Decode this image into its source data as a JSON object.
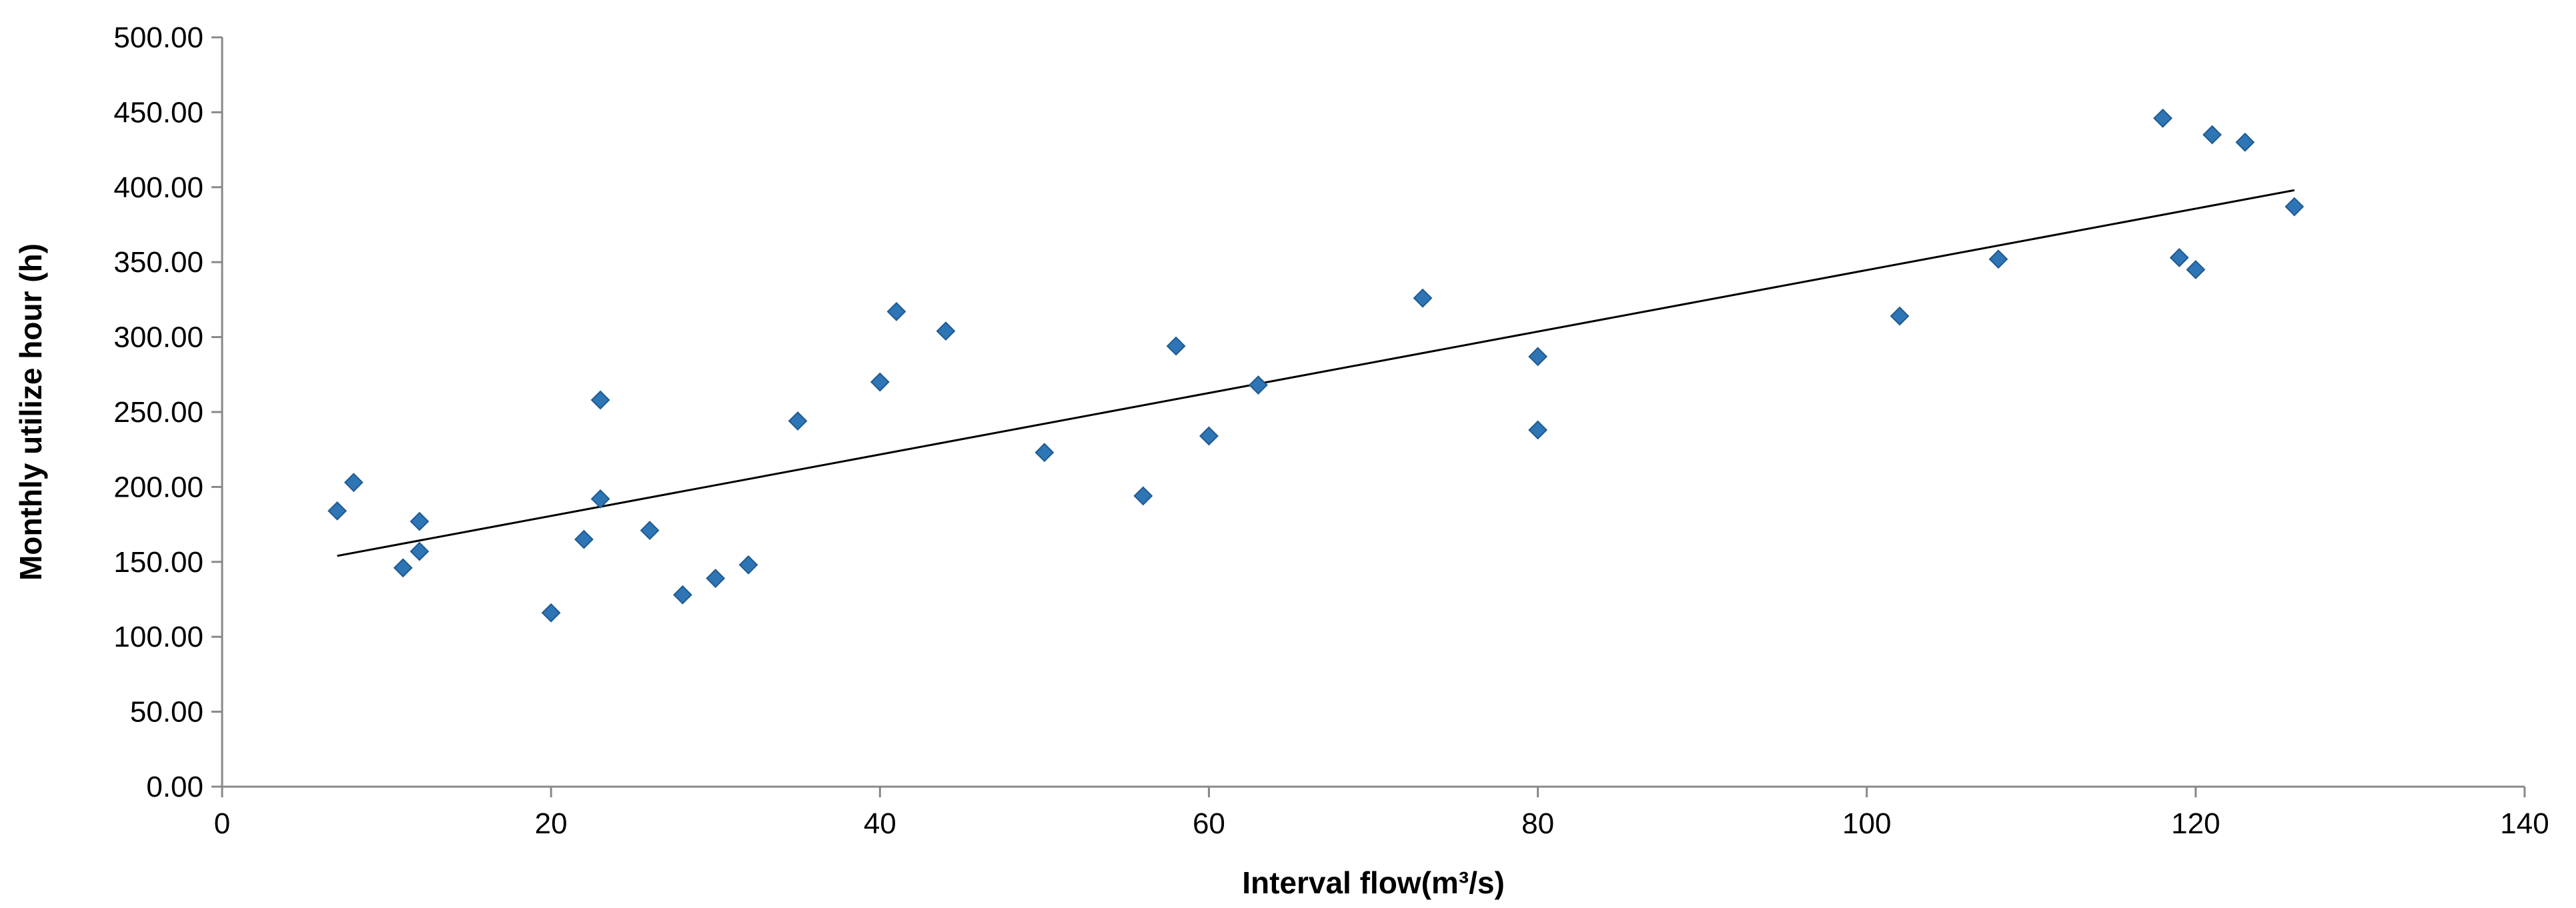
{
  "chart_data": {
    "type": "scatter",
    "title": "",
    "xlabel": "Interval flow(m³/s)",
    "ylabel": "Monthly utilize hour (h)",
    "xlim": [
      0,
      140
    ],
    "ylim": [
      0,
      500
    ],
    "xticks": [
      "0",
      "20",
      "40",
      "60",
      "80",
      "100",
      "120",
      "140"
    ],
    "yticks": [
      "0.00",
      "50.00",
      "100.00",
      "150.00",
      "200.00",
      "250.00",
      "300.00",
      "350.00",
      "400.00",
      "450.00",
      "500.00"
    ],
    "grid": false,
    "legend": "none",
    "marker_color": "#2e75b6",
    "trendline": {
      "type": "linear",
      "color": "#000000",
      "x": [
        7,
        126
      ],
      "y": [
        154,
        398
      ]
    },
    "series": [
      {
        "x": [
          7,
          8,
          11,
          12,
          12,
          20,
          22,
          23,
          23,
          26,
          28,
          30,
          32,
          35,
          40,
          41,
          44,
          50,
          56,
          58,
          60,
          63,
          73,
          80,
          80,
          102,
          108,
          118,
          119,
          120,
          121,
          123,
          126
        ],
        "y": [
          184,
          203,
          146,
          157,
          177,
          116,
          165,
          192,
          258,
          171,
          128,
          139,
          148,
          244,
          270,
          317,
          304,
          223,
          194,
          294,
          234,
          268,
          326,
          287,
          238,
          314,
          352,
          446,
          353,
          345,
          435,
          430,
          387
        ]
      }
    ]
  }
}
